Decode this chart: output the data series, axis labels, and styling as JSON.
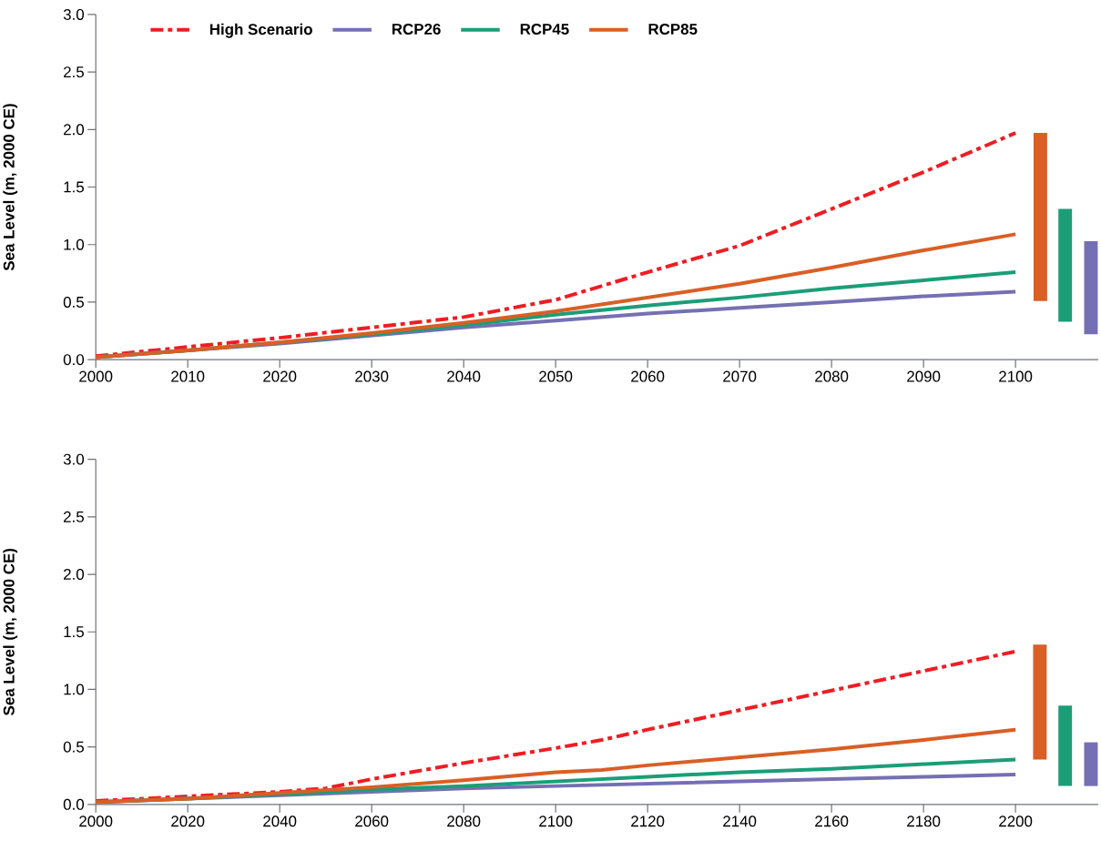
{
  "chart_data": [
    {
      "type": "line",
      "ylabel": "Sea Level (m, 2000 CE)",
      "xlim": [
        2000,
        2109
      ],
      "ylim": [
        0,
        3
      ],
      "xticks": [
        2000,
        2010,
        2020,
        2030,
        2040,
        2050,
        2060,
        2070,
        2080,
        2090,
        2100
      ],
      "yticks": [
        {
          "value": 0,
          "label": "0.0"
        },
        {
          "value": 0.5,
          "label": "0.5"
        },
        {
          "value": 1,
          "label": "1.0"
        },
        {
          "value": 1.5,
          "label": "1.5"
        },
        {
          "value": 2,
          "label": "2.0"
        },
        {
          "value": 2.5,
          "label": "2.5"
        },
        {
          "value": 3,
          "label": "3.0"
        }
      ],
      "legend": "top left",
      "series": [
        {
          "name": "High Scenario",
          "color": "#ee1d23",
          "line_style": "dashed",
          "x": [
            2000,
            2010,
            2020,
            2030,
            2040,
            2050,
            2060,
            2070,
            2080,
            2090,
            2100
          ],
          "values": [
            0.03,
            0.11,
            0.19,
            0.28,
            0.37,
            0.52,
            0.76,
            0.99,
            1.31,
            1.63,
            1.97
          ]
        },
        {
          "name": "RCP26",
          "color": "#7570b3",
          "line_style": "solid",
          "x": [
            2000,
            2010,
            2020,
            2030,
            2040,
            2050,
            2060,
            2070,
            2080,
            2090,
            2100
          ],
          "values": [
            0.02,
            0.08,
            0.14,
            0.21,
            0.28,
            0.34,
            0.4,
            0.45,
            0.5,
            0.55,
            0.59
          ]
        },
        {
          "name": "RCP45",
          "color": "#1b9e77",
          "line_style": "solid",
          "x": [
            2000,
            2010,
            2020,
            2030,
            2040,
            2050,
            2060,
            2070,
            2080,
            2090,
            2100
          ],
          "values": [
            0.02,
            0.08,
            0.15,
            0.22,
            0.3,
            0.39,
            0.47,
            0.54,
            0.62,
            0.69,
            0.76
          ]
        },
        {
          "name": "RCP85",
          "color": "#d95f25",
          "line_style": "solid",
          "x": [
            2000,
            2010,
            2020,
            2030,
            2040,
            2050,
            2060,
            2070,
            2080,
            2090,
            2100
          ],
          "values": [
            0.02,
            0.08,
            0.15,
            0.23,
            0.32,
            0.42,
            0.54,
            0.66,
            0.8,
            0.95,
            1.09
          ]
        },
        {
          "type": "bar",
          "x": [
            2102.7,
            2105.4,
            2108.2
          ],
          "base": [
            0.51,
            0.33,
            0.22
          ],
          "values": [
            1.46,
            0.98,
            0.81
          ],
          "colors": [
            "#d95f25",
            "#1b9e77",
            "#7570b3"
          ]
        }
      ]
    },
    {
      "type": "line",
      "ylabel": "Sea Level (m, 2000 CE)",
      "xlim": [
        2000,
        2218
      ],
      "ylim": [
        0,
        3
      ],
      "xticks": [
        2000,
        2020,
        2040,
        2060,
        2080,
        2100,
        2120,
        2140,
        2160,
        2180,
        2200
      ],
      "yticks": [
        {
          "value": 0,
          "label": "0.0"
        },
        {
          "value": 0.5,
          "label": "0.5"
        },
        {
          "value": 1,
          "label": "1.0"
        },
        {
          "value": 1.5,
          "label": "1.5"
        },
        {
          "value": 2,
          "label": "2.0"
        },
        {
          "value": 2.5,
          "label": "2.5"
        },
        {
          "value": 3,
          "label": "3.0"
        }
      ],
      "series": [
        {
          "color": "#ee1d23",
          "line_style": "dashed",
          "x": [
            2000,
            2020,
            2040,
            2050,
            2060,
            2080,
            2100,
            2110,
            2120,
            2140,
            2160,
            2180,
            2200
          ],
          "values": [
            0.03,
            0.07,
            0.11,
            0.14,
            0.22,
            0.36,
            0.49,
            0.56,
            0.65,
            0.82,
            0.99,
            1.16,
            1.33
          ]
        },
        {
          "color": "#7570b3",
          "line_style": "solid",
          "x": [
            2000,
            2020,
            2040,
            2060,
            2080,
            2100,
            2120,
            2140,
            2160,
            2180,
            2200
          ],
          "values": [
            0.02,
            0.05,
            0.08,
            0.11,
            0.14,
            0.16,
            0.18,
            0.2,
            0.22,
            0.24,
            0.26
          ]
        },
        {
          "color": "#1b9e77",
          "line_style": "solid",
          "x": [
            2000,
            2020,
            2040,
            2060,
            2080,
            2100,
            2120,
            2140,
            2160,
            2180,
            2200
          ],
          "values": [
            0.02,
            0.05,
            0.09,
            0.13,
            0.16,
            0.2,
            0.24,
            0.28,
            0.31,
            0.35,
            0.39
          ]
        },
        {
          "color": "#d95f25",
          "line_style": "solid",
          "x": [
            2000,
            2020,
            2040,
            2060,
            2080,
            2100,
            2110,
            2120,
            2140,
            2160,
            2180,
            2200
          ],
          "values": [
            0.02,
            0.05,
            0.1,
            0.15,
            0.21,
            0.28,
            0.3,
            0.34,
            0.41,
            0.48,
            0.56,
            0.65
          ]
        },
        {
          "type": "bar",
          "x": [
            2205.3,
            2210.8,
            2216.4
          ],
          "base": [
            0.39,
            0.16,
            0.16
          ],
          "values": [
            1.0,
            0.7,
            0.38
          ],
          "colors": [
            "#d95f25",
            "#1b9e77",
            "#7570b3"
          ]
        }
      ]
    }
  ]
}
